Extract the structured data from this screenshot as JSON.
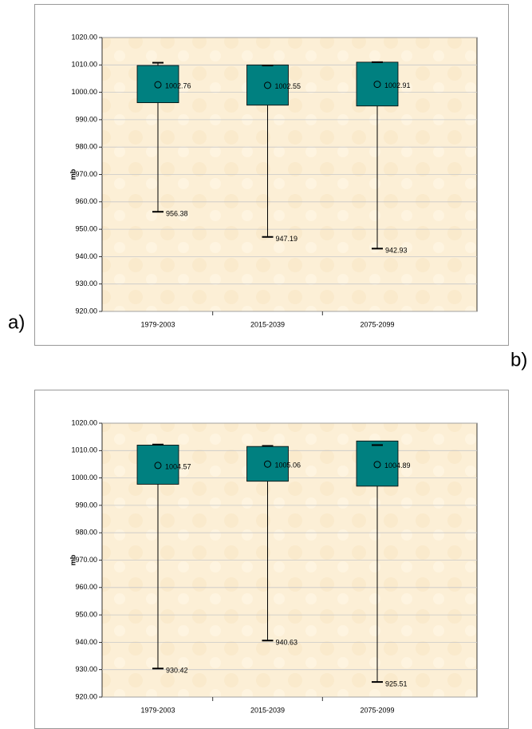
{
  "chart_data": [
    {
      "type": "box",
      "panel_label": "a)",
      "y_label": "mb",
      "categories": [
        "1979-2003",
        "2015-2039",
        "2075-2099"
      ],
      "min": [
        956.38,
        947.19,
        942.93
      ],
      "q1": [
        996.2,
        995.3,
        995.0
      ],
      "q3": [
        1009.8,
        1010.0,
        1011.0
      ],
      "max": [
        1010.8,
        1009.8,
        1011.0
      ],
      "mean": [
        1002.76,
        1002.55,
        1002.91
      ],
      "color": "#008080",
      "grid": true,
      "ylim": [
        920,
        1020
      ],
      "yticks": [
        {
          "value": 920,
          "label": "920.00"
        },
        {
          "value": 930,
          "label": "930.00"
        },
        {
          "value": 940,
          "label": "940.00"
        },
        {
          "value": 950,
          "label": "950.00"
        },
        {
          "value": 960,
          "label": "960.00"
        },
        {
          "value": 970,
          "label": "970.00"
        },
        {
          "value": 980,
          "label": "980.00"
        },
        {
          "value": 990,
          "label": "990.00"
        },
        {
          "value": 1000,
          "label": "1000.00"
        },
        {
          "value": 1010,
          "label": "1010.00"
        },
        {
          "value": 1020,
          "label": "1020.00"
        }
      ]
    },
    {
      "type": "box",
      "panel_label": "b)",
      "y_label": "mb",
      "categories": [
        "1979-2003",
        "2015-2039",
        "2075-2099"
      ],
      "min": [
        930.42,
        940.63,
        925.51
      ],
      "q1": [
        997.7,
        998.8,
        997.0
      ],
      "q3": [
        1012.0,
        1011.5,
        1013.5
      ],
      "max": [
        1012.2,
        1011.7,
        1012.0
      ],
      "mean": [
        1004.57,
        1005.06,
        1004.89
      ],
      "color": "#008080",
      "grid": true,
      "ylim": [
        920,
        1020
      ],
      "yticks": [
        {
          "value": 920,
          "label": "920.00"
        },
        {
          "value": 930,
          "label": "930.00"
        },
        {
          "value": 940,
          "label": "940.00"
        },
        {
          "value": 950,
          "label": "950.00"
        },
        {
          "value": 960,
          "label": "960.00"
        },
        {
          "value": 970,
          "label": "970.00"
        },
        {
          "value": 980,
          "label": "980.00"
        },
        {
          "value": 990,
          "label": "990.00"
        },
        {
          "value": 1000,
          "label": "1000.00"
        },
        {
          "value": 1010,
          "label": "1010.00"
        },
        {
          "value": 1020,
          "label": "1020.00"
        }
      ]
    }
  ]
}
